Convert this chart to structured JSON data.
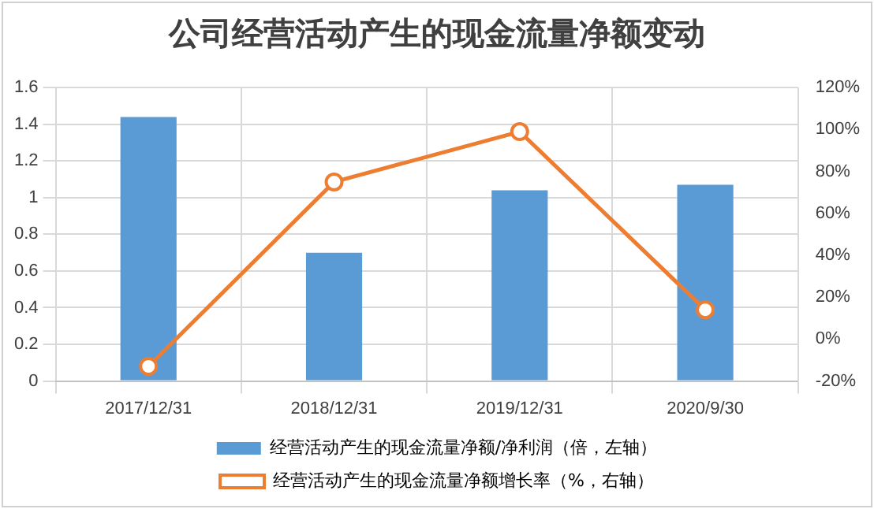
{
  "chart_data": {
    "type": "bar",
    "title": "公司经营活动产生的现金流量净额变动",
    "categories": [
      "2017/12/31",
      "2018/12/31",
      "2019/12/31",
      "2020/9/30"
    ],
    "series": [
      {
        "name": "经营活动产生的现金流量净额/净利润（倍，左轴）",
        "color": "#5b9bd5",
        "values": [
          1.44,
          0.7,
          1.04,
          1.07
        ]
      },
      {
        "name": "经营活动产生的现金流量净额增长率（%，右轴）",
        "type": "line",
        "axis": "y2",
        "color": "#ed7d31",
        "values": [
          -13,
          75,
          99,
          14
        ],
        "marker": "circle"
      }
    ],
    "ylim": [
      0,
      1.6
    ],
    "yticks": [
      0,
      0.2,
      0.4,
      0.6,
      0.8,
      1,
      1.2,
      1.4,
      1.6
    ],
    "y2lim": [
      -20,
      120
    ],
    "y2ticks": [
      {
        "value": -20,
        "label": "-20%"
      },
      {
        "value": 0,
        "label": "0%"
      },
      {
        "value": 20,
        "label": "20%"
      },
      {
        "value": 40,
        "label": "40%"
      },
      {
        "value": 60,
        "label": "60%"
      },
      {
        "value": 80,
        "label": "80%"
      },
      {
        "value": 100,
        "label": "100%"
      },
      {
        "value": 120,
        "label": "120%"
      }
    ],
    "grid": true,
    "legend": "bottom"
  }
}
